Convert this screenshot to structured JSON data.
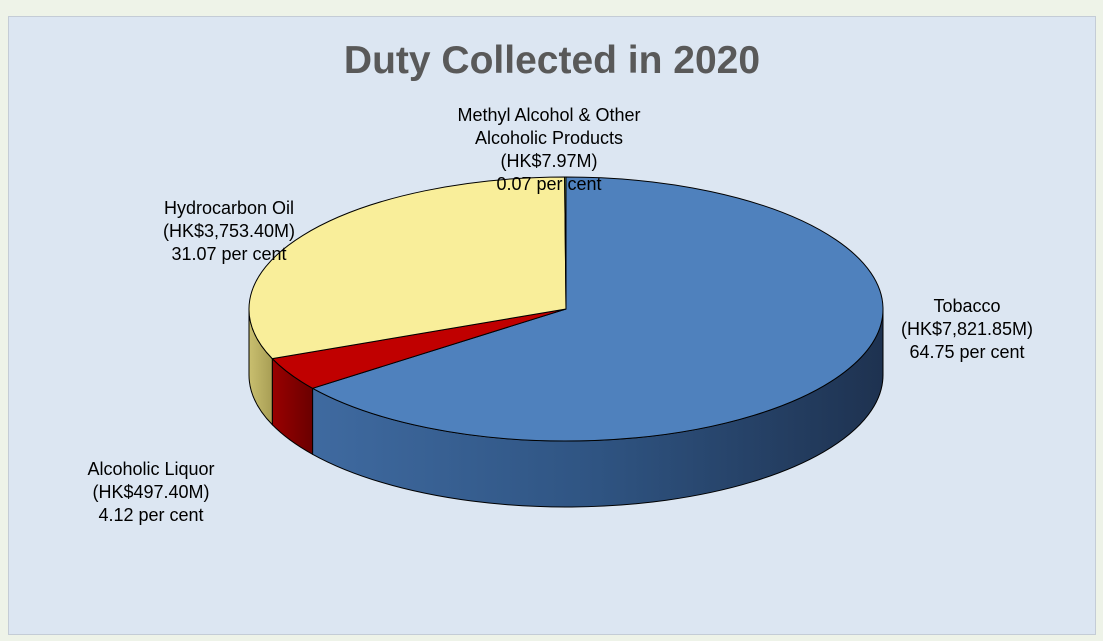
{
  "chart_data": {
    "type": "pie",
    "title": "Duty Collected in 2020",
    "slices": [
      {
        "name": "Tobacco",
        "amount_label": "(HK$7,821.85M)",
        "value": 64.75,
        "percent_label": "64.75 per cent",
        "color": "#4f81bd"
      },
      {
        "name": "Alcoholic Liquor",
        "amount_label": "(HK$497.40M)",
        "value": 4.12,
        "percent_label": "4.12 per cent",
        "color": "#c00000"
      },
      {
        "name": "Hydrocarbon Oil",
        "amount_label": "(HK$3,753.40M)",
        "value": 31.07,
        "percent_label": "31.07 per cent",
        "color": "#f9ee9a"
      },
      {
        "name": "Methyl Alcohol & Other Alcoholic Products",
        "amount_label": "(HK$7.97M)",
        "value": 0.07,
        "percent_label": "0.07 per cent",
        "color": "#9bbb59"
      }
    ]
  }
}
